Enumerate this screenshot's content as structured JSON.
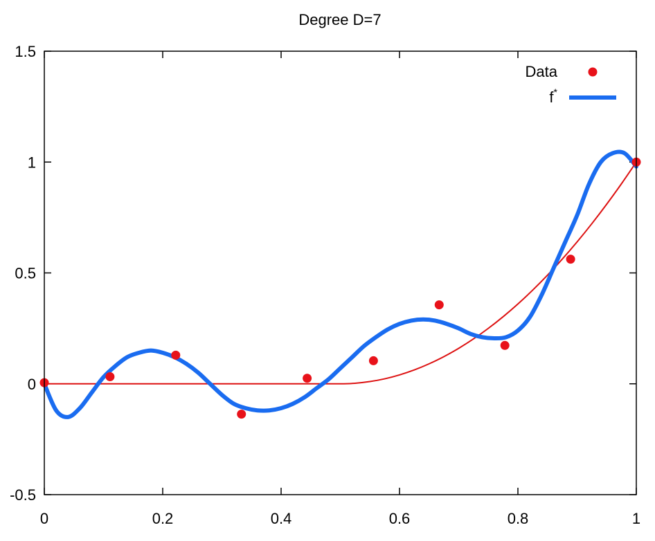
{
  "chart_data": {
    "type": "line",
    "title": "Degree D=7",
    "xlabel": "",
    "ylabel": "",
    "xlim": [
      0,
      1
    ],
    "ylim": [
      -0.5,
      1.5
    ],
    "x_ticks": [
      "0",
      "0.2",
      "0.4",
      "0.6",
      "0.8",
      "1"
    ],
    "y_ticks": [
      "-0.5",
      "0",
      "0.5",
      "1",
      "1.5"
    ],
    "grid": false,
    "legend_position": "top-right",
    "legend": [
      {
        "label": "Data",
        "marker": "dot",
        "color": "#e8121a"
      },
      {
        "label": "f",
        "superscript": "*",
        "marker": "thick-line",
        "color": "#1a6cf0"
      }
    ],
    "series": [
      {
        "name": "Data",
        "kind": "points",
        "color": "#e8121a",
        "x": [
          0,
          0.111,
          0.222,
          0.333,
          0.444,
          0.556,
          0.667,
          0.778,
          0.889,
          1.0
        ],
        "y": [
          0.005,
          0.032,
          0.129,
          -0.137,
          0.025,
          0.104,
          0.356,
          0.173,
          0.562,
          1.0
        ]
      },
      {
        "name": "f*",
        "kind": "thick-line",
        "color": "#1a6cf0",
        "x": [
          0,
          0.02,
          0.04,
          0.06,
          0.08,
          0.1,
          0.12,
          0.14,
          0.16,
          0.18,
          0.2,
          0.22,
          0.24,
          0.26,
          0.28,
          0.3,
          0.32,
          0.34,
          0.36,
          0.38,
          0.4,
          0.42,
          0.44,
          0.46,
          0.48,
          0.5,
          0.52,
          0.54,
          0.56,
          0.58,
          0.6,
          0.62,
          0.64,
          0.66,
          0.68,
          0.7,
          0.72,
          0.74,
          0.76,
          0.78,
          0.8,
          0.82,
          0.84,
          0.86,
          0.88,
          0.9,
          0.92,
          0.94,
          0.96,
          0.98,
          1.0
        ],
        "y": [
          0.0,
          -0.12,
          -0.15,
          -0.11,
          -0.04,
          0.03,
          0.08,
          0.12,
          0.14,
          0.15,
          0.14,
          0.12,
          0.09,
          0.05,
          0.0,
          -0.05,
          -0.09,
          -0.11,
          -0.12,
          -0.12,
          -0.11,
          -0.09,
          -0.06,
          -0.02,
          0.02,
          0.07,
          0.12,
          0.17,
          0.21,
          0.245,
          0.27,
          0.285,
          0.29,
          0.285,
          0.27,
          0.25,
          0.225,
          0.21,
          0.205,
          0.21,
          0.24,
          0.3,
          0.4,
          0.52,
          0.64,
          0.76,
          0.9,
          1.0,
          1.04,
          1.04,
          0.98
        ]
      },
      {
        "name": "",
        "kind": "thin-line",
        "color": "#dd1111",
        "x": [
          0,
          0.05,
          0.1,
          0.15,
          0.2,
          0.25,
          0.3,
          0.35,
          0.4,
          0.45,
          0.5,
          0.525,
          0.55,
          0.575,
          0.6,
          0.625,
          0.65,
          0.675,
          0.7,
          0.725,
          0.75,
          0.775,
          0.8,
          0.825,
          0.85,
          0.875,
          0.9,
          0.925,
          0.95,
          0.975,
          1.0
        ],
        "y": [
          0,
          0,
          0,
          0,
          0,
          0,
          0,
          0,
          0,
          0,
          0,
          0.0025,
          0.01,
          0.0225,
          0.04,
          0.0625,
          0.09,
          0.1225,
          0.16,
          0.2025,
          0.25,
          0.3025,
          0.36,
          0.4225,
          0.49,
          0.5625,
          0.64,
          0.7225,
          0.81,
          0.9025,
          1.0
        ]
      }
    ]
  }
}
